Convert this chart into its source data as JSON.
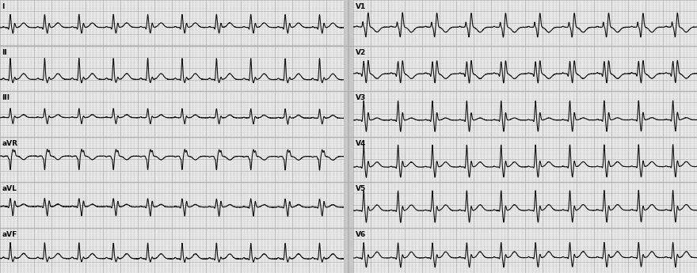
{
  "bg_color": "#c8c8c8",
  "strip_bg": "#e8e8e8",
  "separator_color": "#b0b0b0",
  "grid_dot_color": "#aaaaaa",
  "grid_major_color": "#999999",
  "ecg_color": "#111111",
  "lead_labels": [
    "I",
    "II",
    "III",
    "aVR",
    "aVL",
    "aVF",
    "V1",
    "V2",
    "V3",
    "V4",
    "V5",
    "V6"
  ],
  "figsize": [
    8.8,
    3.45
  ],
  "dpi": 100,
  "heart_rate": 150,
  "sample_rate": 500,
  "n_rows": 6,
  "duration": 4.0
}
